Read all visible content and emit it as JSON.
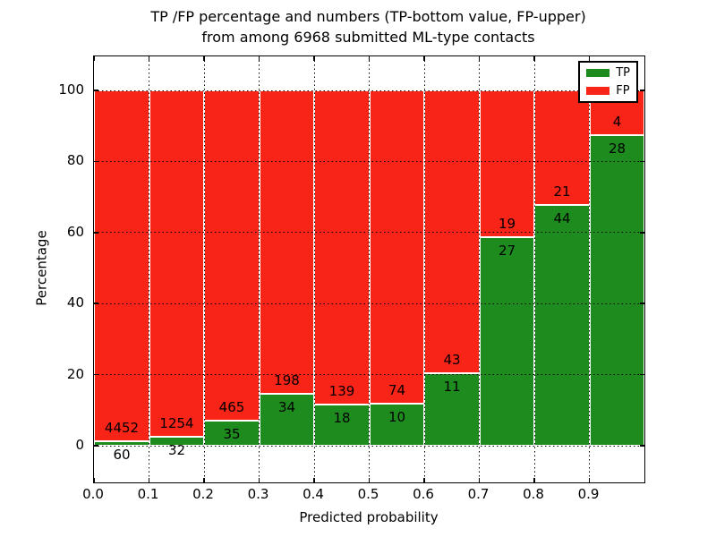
{
  "figure": {
    "title_line1": "TP /FP percentage and numbers (TP-bottom value, FP-upper)",
    "title_line2": "from among 6968 submitted ML-type contacts",
    "xlabel": "Predicted probability",
    "ylabel": "Percentage",
    "x_tick_labels": [
      "0.0",
      "0.1",
      "0.2",
      "0.3",
      "0.4",
      "0.5",
      "0.6",
      "0.7",
      "0.8",
      "0.9"
    ],
    "x_tick_values": [
      0.0,
      0.1,
      0.2,
      0.3,
      0.4,
      0.5,
      0.6,
      0.7,
      0.8,
      0.9
    ],
    "y_tick_labels": [
      "0",
      "20",
      "40",
      "60",
      "80",
      "100"
    ],
    "y_tick_values": [
      0,
      20,
      40,
      60,
      80,
      100
    ]
  },
  "legend": {
    "entries": [
      {
        "label": "TP",
        "color": "#1e8b1e"
      },
      {
        "label": "FP",
        "color": "#f92418"
      }
    ]
  },
  "colors": {
    "tp": "#1e8b1e",
    "fp": "#f92418",
    "bar_edge": "#ffffff",
    "grid": "#000000",
    "background": "#ffffff"
  },
  "chart_data": {
    "type": "bar",
    "stacked": true,
    "normalized": "each bin stacks to 100%",
    "title": "TP /FP percentage and numbers (TP-bottom value, FP-upper) from among 6968 submitted ML-type contacts",
    "xlabel": "Predicted probability",
    "ylabel": "Percentage",
    "total_contacts": 6968,
    "bin_edges": [
      0.0,
      0.1,
      0.2,
      0.3,
      0.4,
      0.5,
      0.6,
      0.7,
      0.8,
      0.9,
      1.0
    ],
    "series": [
      {
        "name": "TP",
        "color": "#1e8b1e",
        "counts": [
          60,
          32,
          35,
          34,
          18,
          10,
          11,
          27,
          44,
          28
        ]
      },
      {
        "name": "FP",
        "color": "#f92418",
        "counts": [
          4452,
          1254,
          465,
          198,
          139,
          74,
          43,
          19,
          21,
          4
        ]
      }
    ],
    "tp_percent_per_bin": [
      1.33,
      2.49,
      7.0,
      14.66,
      11.46,
      11.9,
      20.37,
      58.7,
      67.69,
      87.5
    ],
    "xlim": [
      0.0,
      1.0
    ],
    "ylim": [
      -10.5,
      110
    ],
    "grid": "dotted black; vertical every 0.1, horizontal every 20",
    "legend_position": "upper right",
    "label_convention": "TP count printed below stack boundary, FP count printed above it"
  }
}
